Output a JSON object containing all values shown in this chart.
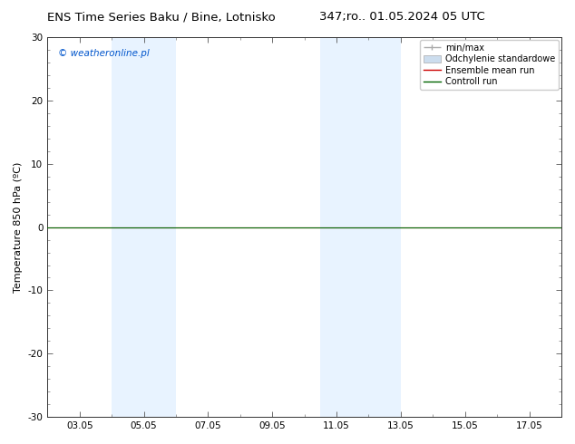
{
  "title_left": "ENS Time Series Baku / Bine, Lotnisko",
  "title_right": "347;ro.. 01.05.2024 05 UTC",
  "ylabel": "Temperature 850 hPa (ºC)",
  "ylim": [
    -30,
    30
  ],
  "yticks": [
    -30,
    -20,
    -10,
    0,
    10,
    20,
    30
  ],
  "xlim": [
    2.0,
    18.0
  ],
  "xtick_labels": [
    "03.05",
    "05.05",
    "07.05",
    "09.05",
    "11.05",
    "13.05",
    "15.05",
    "17.05"
  ],
  "xtick_positions": [
    3,
    5,
    7,
    9,
    11,
    13,
    15,
    17
  ],
  "blue_bands": [
    {
      "xstart": 4.0,
      "xend": 6.0
    },
    {
      "xstart": 10.5,
      "xend": 13.0
    }
  ],
  "flat_line_y": 0.0,
  "green_line_color": "#006400",
  "red_line_color": "#cc0000",
  "watermark_text": "© weatheronline.pl",
  "watermark_color": "#0055cc",
  "background_color": "#ffffff",
  "plot_bg_color": "#ffffff",
  "legend_labels": [
    "min/max",
    "Odchylenie standardowe",
    "Ensemble mean run",
    "Controll run"
  ],
  "title_fontsize": 9.5,
  "axis_label_fontsize": 8,
  "tick_fontsize": 7.5,
  "legend_fontsize": 7,
  "band_color": "#ddeeff",
  "band_alpha": 0.65
}
